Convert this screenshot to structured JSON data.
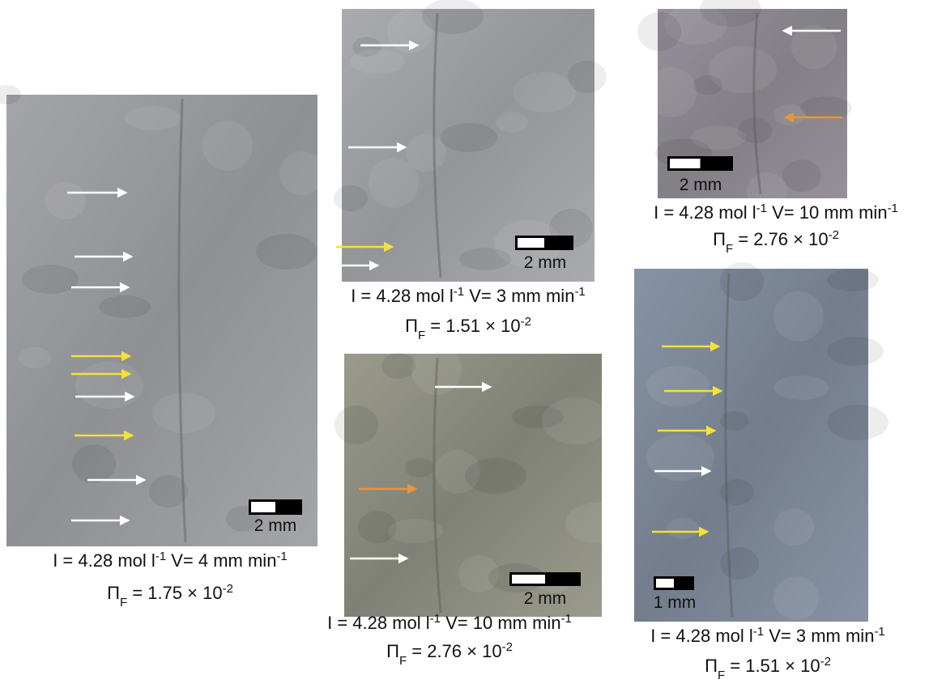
{
  "panels": [
    {
      "scale_label": "2 mm",
      "caption": {
        "line1": {
          "concentration": "I = 4.28 mol l",
          "concentration_exp": "-1",
          "speed": " V= 4 mm min",
          "speed_exp": "-1"
        },
        "line2": {
          "symbol": "Π",
          "subscript": "F",
          "value": " = 1.75 × 10",
          "exponent": "-2"
        }
      }
    },
    {
      "scale_label": "2 mm",
      "caption": {
        "line1": {
          "concentration": "I = 4.28 mol l",
          "concentration_exp": "-1",
          "speed": " V= 3 mm min",
          "speed_exp": "-1"
        },
        "line2": {
          "symbol": "Π",
          "subscript": "F",
          "value": " = 1.51 × 10",
          "exponent": "-2"
        }
      }
    },
    {
      "scale_label": "2 mm",
      "caption": {
        "line1": {
          "concentration": "I = 4.28 mol l",
          "concentration_exp": "-1",
          "speed": " V= 10 mm min",
          "speed_exp": "-1"
        },
        "line2": {
          "symbol": "Π",
          "subscript": "F",
          "value": " = 2.76 × 10",
          "exponent": "-2"
        }
      }
    },
    {
      "scale_label": "2 mm",
      "caption": {
        "line1": {
          "concentration": "I = 4.28 mol l",
          "concentration_exp": "-1",
          "speed": " V= 10 mm min",
          "speed_exp": "-1"
        },
        "line2": {
          "symbol": "Π",
          "subscript": "F",
          "value": " = 2.76 × 10",
          "exponent": "-2"
        }
      }
    },
    {
      "scale_label": "1 mm",
      "caption": {
        "line1": {
          "concentration": "I = 4.28 mol l",
          "concentration_exp": "-1",
          "speed": " V= 3 mm min",
          "speed_exp": "-1"
        },
        "line2": {
          "symbol": "Π",
          "subscript": "F",
          "value": " = 1.51 × 10",
          "exponent": "-2"
        }
      }
    }
  ]
}
